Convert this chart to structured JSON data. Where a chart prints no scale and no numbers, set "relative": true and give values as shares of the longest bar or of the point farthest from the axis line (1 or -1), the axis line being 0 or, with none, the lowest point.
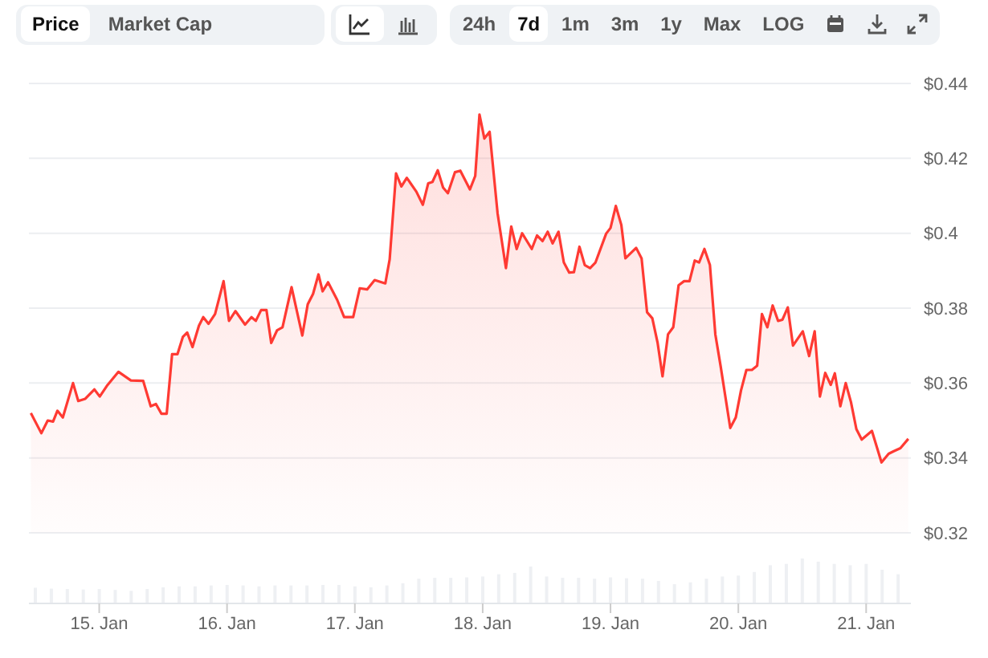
{
  "chart_data": [
    {
      "type": "area",
      "color": "#ff3a33",
      "annotations": [
        "Price",
        "Market Cap",
        "24h",
        "7d",
        "1m",
        "3m",
        "1y",
        "Max",
        "LOG"
      ],
      "x": [
        "--01-14T11:10",
        "--01-14T13:08",
        "--01-14T14:20",
        "--01-14T15:20",
        "--01-14T16:09",
        "--01-14T17:10",
        "--01-14T19:05",
        "--01-14T20:04",
        "--01-14T21:23",
        "--01-14T23:05",
        "--01-15T00:06",
        "--01-15T01:25",
        "--01-15T03:37",
        "--01-15T05:57",
        "--01-15T08:15",
        "--01-15T09:40",
        "--01-15T10:39",
        "--01-15T11:41",
        "--01-15T12:40",
        "--01-15T13:41",
        "--01-15T14:41",
        "--01-15T15:42",
        "--01-15T16:31",
        "--01-15T17:31",
        "--01-15T18:43",
        "--01-15T19:32",
        "--01-15T20:31",
        "--01-15T21:45",
        "--01-15T23:21",
        "--01-16T00:22",
        "--01-16T01:35",
        "--01-16T03:23",
        "--01-16T04:35",
        "--01-16T05:24",
        "--01-16T06:24",
        "--01-16T07:24",
        "--01-16T08:18",
        "--01-16T09:24",
        "--01-16T10:25",
        "--01-16T12:07",
        "--01-16T14:08",
        "--01-16T15:09",
        "--01-16T16:09",
        "--01-16T17:10",
        "--01-16T17:57",
        "--01-16T18:58",
        "--01-16T20:41",
        "--01-16T21:59",
        "--01-16T23:41",
        "--01-17T00:55",
        "--01-17T02:18",
        "--01-17T03:43",
        "--01-17T05:43",
        "--01-17T06:32",
        "--01-17T07:44",
        "--01-17T08:44",
        "--01-17T09:45",
        "--01-17T11:33",
        "--01-17T12:46",
        "--01-17T13:46",
        "--01-17T14:34",
        "--01-17T15:34",
        "--01-17T16:34",
        "--01-17T17:28",
        "--01-17T18:48",
        "--01-17T19:48",
        "--01-17T21:36",
        "--01-17T22:36",
        "--01-17T23:24",
        "--01-18T00:19",
        "--01-18T01:18",
        "--01-18T02:48",
        "--01-18T04:22",
        "--01-18T05:22",
        "--01-18T06:23",
        "--01-18T07:24",
        "--01-18T09:13",
        "--01-18T10:12",
        "--01-18T11:14",
        "--01-18T12:13",
        "--01-18T13:08",
        "--01-18T14:14",
        "--01-18T15:14",
        "--01-18T16:15",
        "--01-18T17:08",
        "--01-18T18:10",
        "--01-18T19:10",
        "--01-18T20:10",
        "--01-18T21:11",
        "--01-18T23:11",
        "--01-19T00:00",
        "--01-19T01:00",
        "--01-19T02:02",
        "--01-19T02:48",
        "--01-19T04:49",
        "--01-19T05:50",
        "--01-19T06:52",
        "--01-19T07:51",
        "--01-19T08:51",
        "--01-19T09:46",
        "--01-19T10:48",
        "--01-19T11:47",
        "--01-19T12:47",
        "--01-19T13:49",
        "--01-19T14:50",
        "--01-19T15:49",
        "--01-19T16:38",
        "--01-19T17:38",
        "--01-19T18:40",
        "--01-19T19:41",
        "--01-19T20:40",
        "--01-19T22:29",
        "--01-19T23:31",
        "--01-20T00:30",
        "--01-20T01:31",
        "--01-20T02:33",
        "--01-20T03:32",
        "--01-20T04:26",
        "--01-20T05:27",
        "--01-20T06:27",
        "--01-20T07:28",
        "--01-20T08:17",
        "--01-20T09:17",
        "--01-20T10:16",
        "--01-20T12:06",
        "--01-20T13:18",
        "--01-20T14:20",
        "--01-20T15:19",
        "--01-20T16:19",
        "--01-20T17:21",
        "--01-20T18:07",
        "--01-20T19:09",
        "--01-20T20:10",
        "--01-20T21:09",
        "--01-20T22:10",
        "--01-20T23:10",
        "--01-21T01:05",
        "--01-21T02:53",
        "--01-21T04:13",
        "--01-21T05:12",
        "--01-21T06:26",
        "--01-21T07:55"
      ],
      "values": [
        0.352,
        0.3466,
        0.35,
        0.3497,
        0.3526,
        0.3508,
        0.36,
        0.3552,
        0.3558,
        0.3583,
        0.3564,
        0.3592,
        0.363,
        0.3607,
        0.3606,
        0.3538,
        0.3544,
        0.3518,
        0.3518,
        0.3677,
        0.3677,
        0.3723,
        0.3735,
        0.3696,
        0.3753,
        0.3776,
        0.3758,
        0.3784,
        0.3872,
        0.3766,
        0.3792,
        0.3756,
        0.3776,
        0.3766,
        0.3795,
        0.3795,
        0.3707,
        0.3741,
        0.3749,
        0.3856,
        0.3727,
        0.381,
        0.3838,
        0.389,
        0.3845,
        0.3869,
        0.3822,
        0.3776,
        0.3776,
        0.3853,
        0.385,
        0.3875,
        0.3866,
        0.393,
        0.416,
        0.4125,
        0.4148,
        0.4111,
        0.4076,
        0.4133,
        0.4137,
        0.4168,
        0.4122,
        0.4107,
        0.4163,
        0.4167,
        0.4117,
        0.4153,
        0.4317,
        0.4253,
        0.4271,
        0.4053,
        0.3907,
        0.4018,
        0.3958,
        0.4,
        0.3958,
        0.3994,
        0.3979,
        0.4004,
        0.3973,
        0.4004,
        0.3922,
        0.3895,
        0.3896,
        0.3964,
        0.3915,
        0.3907,
        0.3922,
        0.3999,
        0.4014,
        0.4073,
        0.4022,
        0.3933,
        0.3961,
        0.3933,
        0.3789,
        0.3773,
        0.3707,
        0.3618,
        0.373,
        0.3749,
        0.3861,
        0.3872,
        0.3872,
        0.3927,
        0.3922,
        0.3958,
        0.3915,
        0.373,
        0.3646,
        0.348,
        0.3508,
        0.358,
        0.3635,
        0.3635,
        0.3646,
        0.3784,
        0.3749,
        0.3807,
        0.3766,
        0.3769,
        0.3802,
        0.37,
        0.3738,
        0.3672,
        0.3738,
        0.3564,
        0.3627,
        0.3595,
        0.3626,
        0.3538,
        0.36,
        0.3549,
        0.3477,
        0.3449,
        0.3472,
        0.3388,
        0.3411,
        0.3418,
        0.3426,
        0.3451
      ],
      "xlim": [
        "--01-14T10:48",
        "--01-21T08:24"
      ],
      "ylim": [
        0.32,
        0.44
      ],
      "yticks": [
        {
          "value": 0.32,
          "label": "$0.32"
        },
        {
          "value": 0.34,
          "label": "$0.34"
        },
        {
          "value": 0.36,
          "label": "$0.36"
        },
        {
          "value": 0.38,
          "label": "$0.38"
        },
        {
          "value": 0.4,
          "label": "$0.4"
        },
        {
          "value": 0.42,
          "label": "$0.42"
        },
        {
          "value": 0.44,
          "label": "$0.44"
        }
      ],
      "grid": "y",
      "tick_labels": "y"
    },
    {
      "type": "bar",
      "relative": true,
      "color": "#eef0f3",
      "xlim": [
        "--01-14T10:48",
        "--01-21T08:24"
      ],
      "tick_labels": "x",
      "xticks": [
        {
          "value": "--01-15",
          "label": "15. Jan"
        },
        {
          "value": "--01-16",
          "label": "16. Jan"
        },
        {
          "value": "--01-17",
          "label": "17. Jan"
        },
        {
          "value": "--01-18",
          "label": "18. Jan"
        },
        {
          "value": "--01-19",
          "label": "19. Jan"
        },
        {
          "value": "--01-20",
          "label": "20. Jan"
        },
        {
          "value": "--01-21",
          "label": "21. Jan"
        }
      ],
      "x": [
        "--01-14T12:00",
        "--01-14T15:00",
        "--01-14T18:00",
        "--01-14T21:00",
        "--01-15T00:00",
        "--01-15T03:00",
        "--01-15T06:00",
        "--01-15T09:00",
        "--01-15T12:00",
        "--01-15T15:00",
        "--01-15T18:00",
        "--01-15T21:00",
        "--01-16T00:00",
        "--01-16T03:00",
        "--01-16T06:00",
        "--01-16T09:00",
        "--01-16T12:00",
        "--01-16T15:00",
        "--01-16T18:00",
        "--01-16T21:00",
        "--01-17T00:00",
        "--01-17T03:00",
        "--01-17T06:00",
        "--01-17T09:00",
        "--01-17T12:00",
        "--01-17T15:00",
        "--01-17T18:00",
        "--01-17T21:00",
        "--01-18T00:00",
        "--01-18T03:00",
        "--01-18T06:00",
        "--01-18T09:00",
        "--01-18T12:00",
        "--01-18T15:00",
        "--01-18T18:00",
        "--01-18T21:00",
        "--01-19T00:00",
        "--01-19T03:00",
        "--01-19T06:00",
        "--01-19T09:00",
        "--01-19T12:00",
        "--01-19T15:00",
        "--01-19T18:00",
        "--01-19T21:00",
        "--01-20T00:00",
        "--01-20T03:00",
        "--01-20T06:00",
        "--01-20T09:00",
        "--01-20T12:00",
        "--01-20T15:00",
        "--01-20T18:00",
        "--01-20T21:00",
        "--01-21T00:00",
        "--01-21T03:00",
        "--01-21T06:00"
      ],
      "values": [
        0.35,
        0.33,
        0.32,
        0.31,
        0.32,
        0.3,
        0.28,
        0.32,
        0.36,
        0.38,
        0.38,
        0.4,
        0.41,
        0.4,
        0.38,
        0.4,
        0.4,
        0.4,
        0.41,
        0.41,
        0.38,
        0.36,
        0.4,
        0.45,
        0.55,
        0.57,
        0.57,
        0.58,
        0.6,
        0.65,
        0.68,
        0.82,
        0.6,
        0.57,
        0.57,
        0.55,
        0.58,
        0.56,
        0.55,
        0.5,
        0.43,
        0.47,
        0.55,
        0.6,
        0.62,
        0.7,
        0.85,
        0.88,
        1.0,
        0.93,
        0.88,
        0.85,
        0.88,
        0.75,
        0.65
      ]
    }
  ]
}
